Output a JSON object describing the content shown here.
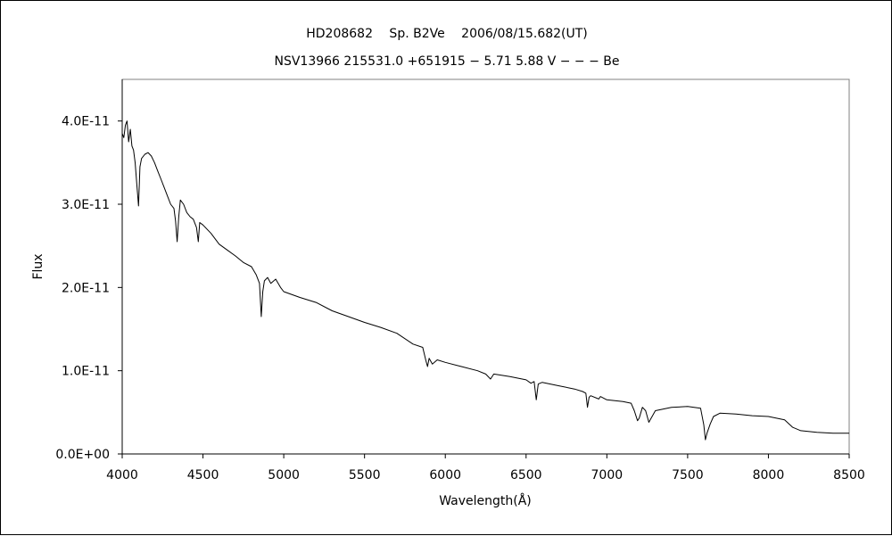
{
  "chart_data": {
    "type": "line",
    "title": "HD208682　 Sp. B2Ve　 2006/08/15.682(UT)",
    "subtitle": "NSV13966 215531.0 +651915 − 5.71 5.88 V − − − Be",
    "xlabel": "Wavelength(Å)",
    "ylabel": "Flux",
    "xlim": [
      4000,
      8500
    ],
    "ylim": [
      0,
      4.5e-11
    ],
    "x_ticks": [
      4000,
      4500,
      5000,
      5500,
      6000,
      6500,
      7000,
      7500,
      8000,
      8500
    ],
    "x_tick_labels": [
      "4000",
      "4500",
      "5000",
      "5500",
      "6000",
      "6500",
      "7000",
      "7500",
      "8000",
      "8500"
    ],
    "y_ticks": [
      0,
      1e-11,
      2e-11,
      3e-11,
      4e-11
    ],
    "y_tick_labels": [
      "0.0E+00",
      "1.0E-11",
      "2.0E-11",
      "3.0E-11",
      "4.0E-11"
    ],
    "grid": false,
    "legend": "none",
    "series": [
      {
        "color": "#000000",
        "x": [
          4000,
          4010,
          4020,
          4030,
          4040,
          4050,
          4060,
          4070,
          4080,
          4090,
          4101,
          4110,
          4120,
          4140,
          4160,
          4180,
          4200,
          4220,
          4240,
          4260,
          4280,
          4300,
          4320,
          4330,
          4340,
          4350,
          4360,
          4380,
          4400,
          4420,
          4440,
          4460,
          4471,
          4480,
          4500,
          4550,
          4600,
          4650,
          4700,
          4750,
          4800,
          4830,
          4850,
          4861,
          4870,
          4880,
          4900,
          4920,
          4950,
          4980,
          5000,
          5100,
          5200,
          5300,
          5400,
          5500,
          5600,
          5700,
          5800,
          5860,
          5880,
          5890,
          5900,
          5920,
          5950,
          6000,
          6100,
          6200,
          6250,
          6280,
          6300,
          6400,
          6500,
          6530,
          6550,
          6563,
          6575,
          6600,
          6700,
          6800,
          6850,
          6870,
          6880,
          6890,
          6900,
          6950,
          6960,
          7000,
          7100,
          7150,
          7170,
          7190,
          7200,
          7220,
          7240,
          7260,
          7300,
          7400,
          7500,
          7580,
          7600,
          7610,
          7620,
          7640,
          7660,
          7700,
          7800,
          7900,
          8000,
          8100,
          8150,
          8200,
          8300,
          8400,
          8500
        ],
        "y": [
          3.85e-11,
          3.8e-11,
          3.95e-11,
          4e-11,
          3.75e-11,
          3.9e-11,
          3.7e-11,
          3.65e-11,
          3.5e-11,
          3.25e-11,
          2.98e-11,
          3.45e-11,
          3.55e-11,
          3.6e-11,
          3.62e-11,
          3.58e-11,
          3.5e-11,
          3.4e-11,
          3.3e-11,
          3.2e-11,
          3.1e-11,
          3e-11,
          2.95e-11,
          2.8e-11,
          2.55e-11,
          2.85e-11,
          3.05e-11,
          3e-11,
          2.9e-11,
          2.85e-11,
          2.82e-11,
          2.72e-11,
          2.55e-11,
          2.78e-11,
          2.75e-11,
          2.65e-11,
          2.52e-11,
          2.45e-11,
          2.38e-11,
          2.3e-11,
          2.25e-11,
          2.15e-11,
          2.05e-11,
          1.65e-11,
          1.95e-11,
          2.08e-11,
          2.12e-11,
          2.05e-11,
          2.1e-11,
          2e-11,
          1.95e-11,
          1.88e-11,
          1.82e-11,
          1.72e-11,
          1.65e-11,
          1.58e-11,
          1.52e-11,
          1.45e-11,
          1.32e-11,
          1.28e-11,
          1.12e-11,
          1.05e-11,
          1.15e-11,
          1.08e-11,
          1.13e-11,
          1.1e-11,
          1.05e-11,
          1e-11,
          9.6e-12,
          9e-12,
          9.6e-12,
          9.3e-12,
          8.9e-12,
          8.5e-12,
          8.7e-12,
          6.5e-12,
          8.4e-12,
          8.6e-12,
          8.2e-12,
          7.8e-12,
          7.5e-12,
          7.3e-12,
          5.6e-12,
          6.8e-12,
          7e-12,
          6.6e-12,
          6.9e-12,
          6.5e-12,
          6.3e-12,
          6.1e-12,
          5.2e-12,
          4e-12,
          4.3e-12,
          5.6e-12,
          5.2e-12,
          3.8e-12,
          5.2e-12,
          5.6e-12,
          5.7e-12,
          5.5e-12,
          3.5e-12,
          1.7e-12,
          2.5e-12,
          3.6e-12,
          4.5e-12,
          4.9e-12,
          4.8e-12,
          4.6e-12,
          4.5e-12,
          4.1e-12,
          3.2e-12,
          2.8e-12,
          2.6e-12,
          2.5e-12,
          2.5e-12
        ]
      }
    ]
  }
}
